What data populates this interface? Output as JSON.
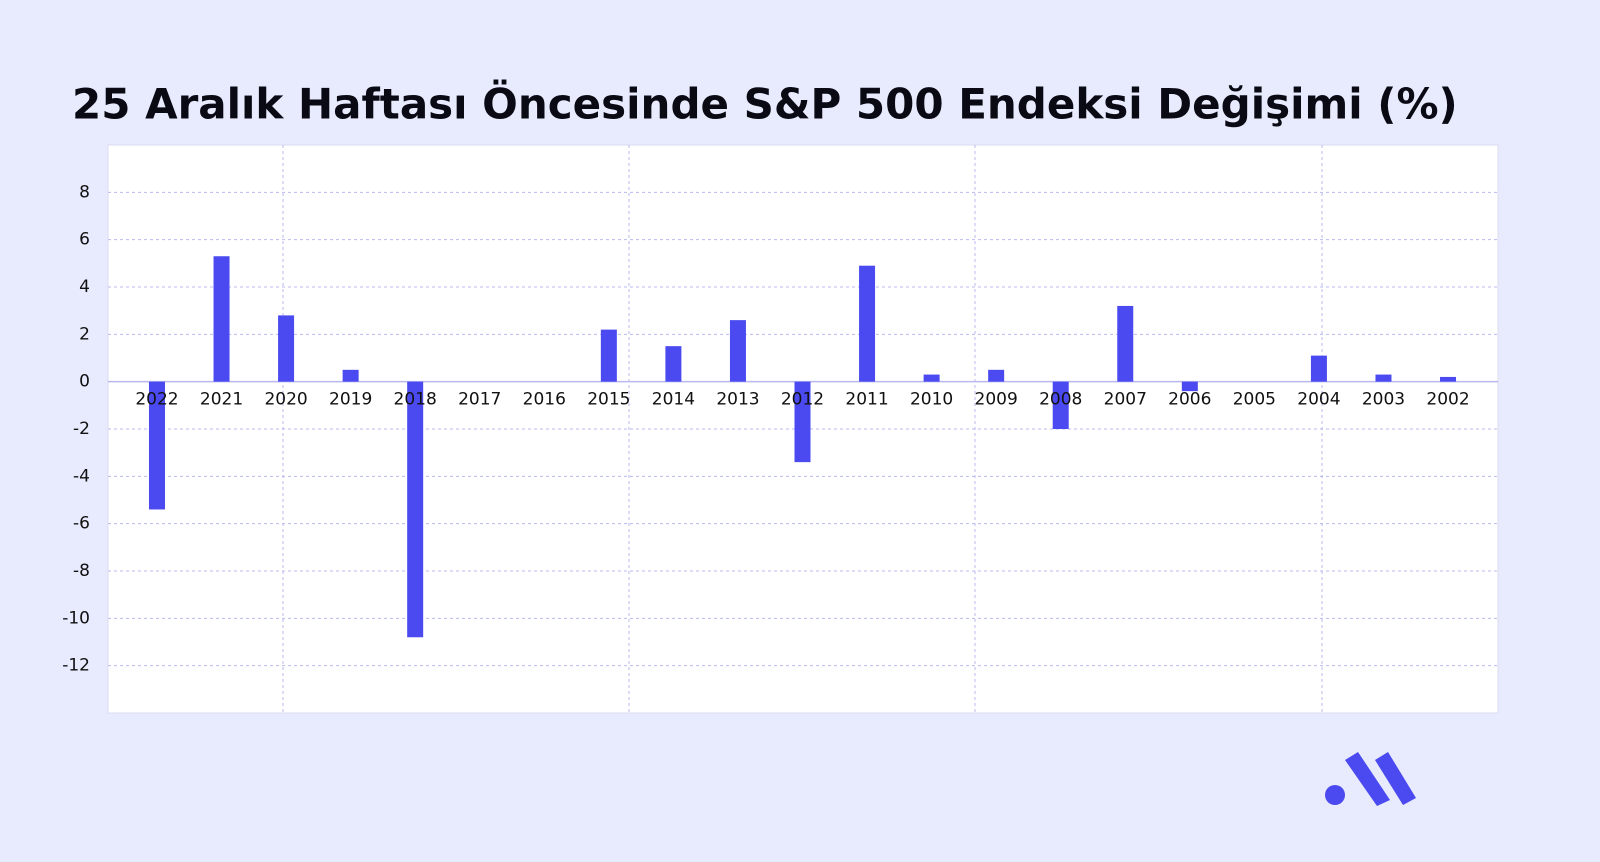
{
  "chart_data": {
    "type": "bar",
    "title": "25 Aralık Haftası Öncesinde S&P 500 Endeksi Değişimi (%)",
    "categories": [
      "2022",
      "2021",
      "2020",
      "2019",
      "2018",
      "2017",
      "2016",
      "2015",
      "2014",
      "2013",
      "2012",
      "2011",
      "2010",
      "2009",
      "2008",
      "2007",
      "2006",
      "2005",
      "2004",
      "2003",
      "2002"
    ],
    "values": [
      -5.4,
      5.3,
      2.8,
      0.5,
      -10.8,
      0,
      0,
      2.2,
      1.5,
      2.6,
      -3.4,
      4.9,
      0.3,
      0.5,
      -2.0,
      3.2,
      -0.4,
      0,
      1.1,
      0.3,
      0.2
    ],
    "color": "#4a4af0",
    "ylim": [
      -14,
      10
    ],
    "yticks": [
      -12,
      -10,
      -8,
      -6,
      -4,
      -2,
      0,
      2,
      4,
      6,
      8
    ],
    "grid": true
  }
}
